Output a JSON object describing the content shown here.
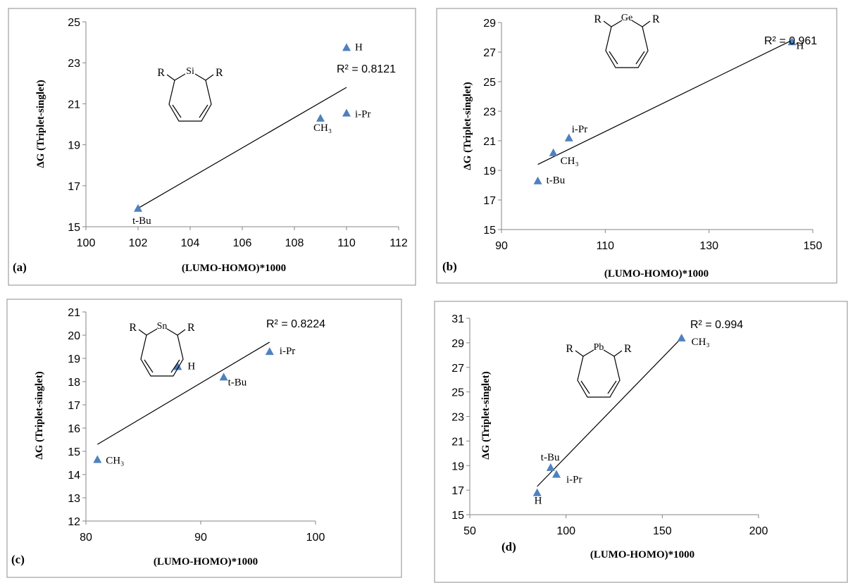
{
  "chart_data": [
    {
      "type": "scatter",
      "panel_label": "(a)",
      "xlabel": "(LUMO-HOMO)*1000",
      "ylabel": "ΔG (Triplet-singlet)",
      "annotation": "R² = 0.8121",
      "structure_labels": [
        "R",
        "Si",
        "R"
      ],
      "color": "#4f81bd",
      "x": [
        102,
        109,
        110,
        110
      ],
      "y": [
        15.9,
        20.3,
        20.55,
        23.75
      ],
      "point_labels": [
        "t-Bu",
        "CH₃",
        "i-Pr",
        "H"
      ],
      "trendline": {
        "x": [
          102,
          110
        ],
        "y": [
          15.9,
          21.8
        ]
      },
      "xlim": [
        100,
        112
      ],
      "xticks": [
        100,
        102,
        104,
        106,
        108,
        110,
        112
      ],
      "ylim": [
        15,
        25
      ],
      "yticks": [
        15,
        17,
        19,
        21,
        23,
        25
      ]
    },
    {
      "type": "scatter",
      "panel_label": "(b)",
      "xlabel": "(LUMO-HOMO)*1000",
      "ylabel": "ΔG (Triplet-singlet)",
      "annotation": "R² = 0.961",
      "structure_labels": [
        "R",
        "Ge",
        "R"
      ],
      "color": "#4f81bd",
      "x": [
        97,
        100,
        103,
        146
      ],
      "y": [
        18.3,
        20.2,
        21.2,
        27.7
      ],
      "point_labels": [
        "t-Bu",
        "CH₃",
        "i-Pr",
        "H"
      ],
      "trendline": {
        "x": [
          97,
          146
        ],
        "y": [
          19.4,
          27.8
        ]
      },
      "xlim": [
        90,
        150
      ],
      "xticks": [
        90,
        110,
        130,
        150
      ],
      "ylim": [
        15,
        29
      ],
      "yticks": [
        15,
        17,
        19,
        21,
        23,
        25,
        27,
        29
      ]
    },
    {
      "type": "scatter",
      "panel_label": "(c)",
      "xlabel": "(LUMO-HOMO)*1000",
      "ylabel": "ΔG (Triplet-singlet)",
      "annotation": "R² = 0.8224",
      "structure_labels": [
        "R",
        "Sn",
        "R"
      ],
      "color": "#4f81bd",
      "x": [
        81,
        88,
        92,
        96
      ],
      "y": [
        14.65,
        18.65,
        18.2,
        19.3
      ],
      "point_labels": [
        "CH₃",
        "H",
        "t-Bu",
        "i-Pr"
      ],
      "trendline": {
        "x": [
          81,
          96
        ],
        "y": [
          15.3,
          19.7
        ]
      },
      "xlim": [
        80,
        100
      ],
      "xticks": [
        80,
        90,
        100
      ],
      "ylim": [
        12,
        21
      ],
      "yticks": [
        12,
        13,
        14,
        15,
        16,
        17,
        18,
        19,
        20,
        21
      ]
    },
    {
      "type": "scatter",
      "panel_label": "(d)",
      "xlabel": "(LUMO-HOMO)*1000",
      "ylabel": "ΔG (Triplet-singlet)",
      "annotation": "R² = 0.994",
      "structure_labels": [
        "R",
        "Pb",
        "R"
      ],
      "color": "#4f81bd",
      "x": [
        85,
        92,
        95,
        160
      ],
      "y": [
        16.8,
        18.85,
        18.3,
        29.4
      ],
      "point_labels": [
        "H",
        "t-Bu",
        "i-Pr",
        "CH₃"
      ],
      "trendline": {
        "x": [
          85,
          160
        ],
        "y": [
          17.3,
          29.4
        ]
      },
      "xlim": [
        50,
        200
      ],
      "xticks": [
        50,
        100,
        150,
        200
      ],
      "ylim": [
        15,
        31
      ],
      "yticks": [
        15,
        17,
        19,
        21,
        23,
        25,
        27,
        29,
        31
      ]
    }
  ]
}
